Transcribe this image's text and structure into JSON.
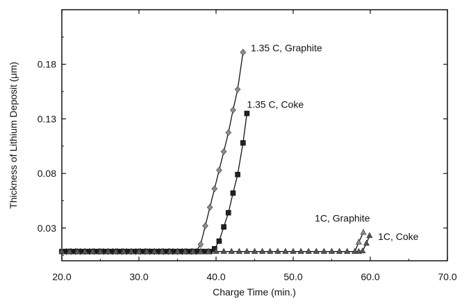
{
  "chart_data": {
    "type": "line",
    "title": "",
    "xlabel": "Charge Time (min.)",
    "ylabel": "Thickness of Lithium Deposit (μm)",
    "xlim": [
      20,
      70
    ],
    "ylim": [
      0,
      0.23
    ],
    "xticks": [
      "20.0",
      "30.0",
      "40.0",
      "50.0",
      "60.0",
      "70.0"
    ],
    "yticks": [
      "0.03",
      "0.08",
      "0.13",
      "0.18"
    ],
    "ytick_values": [
      0.03,
      0.08,
      0.13,
      0.18
    ],
    "grid": false,
    "legend": "none (series labels placed next to curves)",
    "series": [
      {
        "name": "1.35 C, Graphite",
        "marker": "diamond",
        "color": "#8c8c8c",
        "x": [
          20,
          20.6,
          21.2,
          21.8,
          22.4,
          23,
          23.6,
          24.2,
          24.8,
          25.4,
          26,
          26.6,
          27.2,
          27.8,
          28.4,
          29,
          29.6,
          30.2,
          30.8,
          31.4,
          32,
          32.6,
          33.2,
          33.8,
          34.4,
          35,
          35.6,
          36.2,
          36.8,
          37.4,
          38,
          38.6,
          39.2,
          39.8,
          40.4,
          41,
          41.6,
          42.2,
          42.8,
          43.5
        ],
        "y": [
          0.0085,
          0.0085,
          0.0085,
          0.0085,
          0.0085,
          0.0085,
          0.0085,
          0.0085,
          0.0085,
          0.0085,
          0.0085,
          0.0085,
          0.0085,
          0.0085,
          0.0085,
          0.0085,
          0.0085,
          0.0085,
          0.0085,
          0.0085,
          0.0085,
          0.0085,
          0.0085,
          0.0085,
          0.0085,
          0.0085,
          0.0085,
          0.0085,
          0.0085,
          0.0085,
          0.015,
          0.032,
          0.049,
          0.066,
          0.083,
          0.1,
          0.1175,
          0.138,
          0.157,
          0.191
        ]
      },
      {
        "name": "1.35 C, Coke",
        "marker": "square",
        "color": "#222222",
        "x": [
          20,
          20.6,
          21.2,
          21.8,
          22.4,
          23,
          23.6,
          24.2,
          24.8,
          25.4,
          26,
          26.6,
          27.2,
          27.8,
          28.4,
          29,
          29.6,
          30.2,
          30.8,
          31.4,
          32,
          32.6,
          33.2,
          33.8,
          34.4,
          35,
          35.6,
          36.2,
          36.8,
          37.4,
          38,
          38.6,
          39.2,
          39.8,
          40.4,
          41,
          41.6,
          42.2,
          42.8,
          43.5,
          44
        ],
        "y": [
          0.0085,
          0.0085,
          0.0085,
          0.0085,
          0.0085,
          0.0085,
          0.0085,
          0.0085,
          0.0085,
          0.0085,
          0.0085,
          0.0085,
          0.0085,
          0.0085,
          0.0085,
          0.0085,
          0.0085,
          0.0085,
          0.0085,
          0.0085,
          0.0085,
          0.0085,
          0.0085,
          0.0085,
          0.0085,
          0.0085,
          0.0085,
          0.0085,
          0.0085,
          0.0085,
          0.0085,
          0.0085,
          0.0085,
          0.011,
          0.018,
          0.031,
          0.044,
          0.062,
          0.079,
          0.108,
          0.135
        ]
      },
      {
        "name": "1C, Graphite",
        "marker": "triangle",
        "color": "#8c8c8c",
        "x": [
          20,
          21,
          22,
          23,
          24,
          25,
          26,
          27,
          28,
          29,
          30,
          31,
          32,
          33,
          34,
          35,
          36,
          37,
          38,
          39,
          40,
          41,
          42,
          43,
          44,
          45,
          46,
          47,
          48,
          49,
          50,
          51,
          52,
          53,
          54,
          55,
          56,
          57,
          58,
          58.5,
          59.1
        ],
        "y": [
          0.0085,
          0.0085,
          0.0085,
          0.0085,
          0.0085,
          0.0085,
          0.0085,
          0.0085,
          0.0085,
          0.0085,
          0.0085,
          0.0085,
          0.0085,
          0.0085,
          0.0085,
          0.0085,
          0.0085,
          0.0085,
          0.0085,
          0.0085,
          0.0085,
          0.0085,
          0.0085,
          0.0085,
          0.0085,
          0.0085,
          0.0085,
          0.0085,
          0.0085,
          0.0085,
          0.0085,
          0.0085,
          0.0085,
          0.0085,
          0.0085,
          0.0085,
          0.0085,
          0.0085,
          0.0085,
          0.017,
          0.026
        ]
      },
      {
        "name": "1C, Coke",
        "marker": "triangle",
        "color": "#555555",
        "x": [
          20,
          21,
          22,
          23,
          24,
          25,
          26,
          27,
          28,
          29,
          30,
          31,
          32,
          33,
          34,
          35,
          36,
          37,
          38,
          39,
          40,
          41,
          42,
          43,
          44,
          45,
          46,
          47,
          48,
          49,
          50,
          51,
          52,
          53,
          54,
          55,
          56,
          57,
          58,
          58.5,
          59,
          59.5,
          59.9
        ],
        "y": [
          0.0085,
          0.0085,
          0.0085,
          0.0085,
          0.0085,
          0.0085,
          0.0085,
          0.0085,
          0.0085,
          0.0085,
          0.0085,
          0.0085,
          0.0085,
          0.0085,
          0.0085,
          0.0085,
          0.0085,
          0.0085,
          0.0085,
          0.0085,
          0.0085,
          0.0085,
          0.0085,
          0.0085,
          0.0085,
          0.0085,
          0.0085,
          0.0085,
          0.0085,
          0.0085,
          0.0085,
          0.0085,
          0.0085,
          0.0085,
          0.0085,
          0.0085,
          0.0085,
          0.0085,
          0.0085,
          0.0085,
          0.009,
          0.016,
          0.023
        ]
      }
    ],
    "annotations": [
      {
        "text": "1.35 C, Graphite",
        "x": 44.5,
        "y": 0.192
      },
      {
        "text": "1.35 C, Coke",
        "x": 44.0,
        "y": 0.14
      },
      {
        "text": "1C, Graphite",
        "x": 52.8,
        "y": 0.036
      },
      {
        "text": "1C, Coke",
        "x": 61.0,
        "y": 0.019
      }
    ]
  }
}
